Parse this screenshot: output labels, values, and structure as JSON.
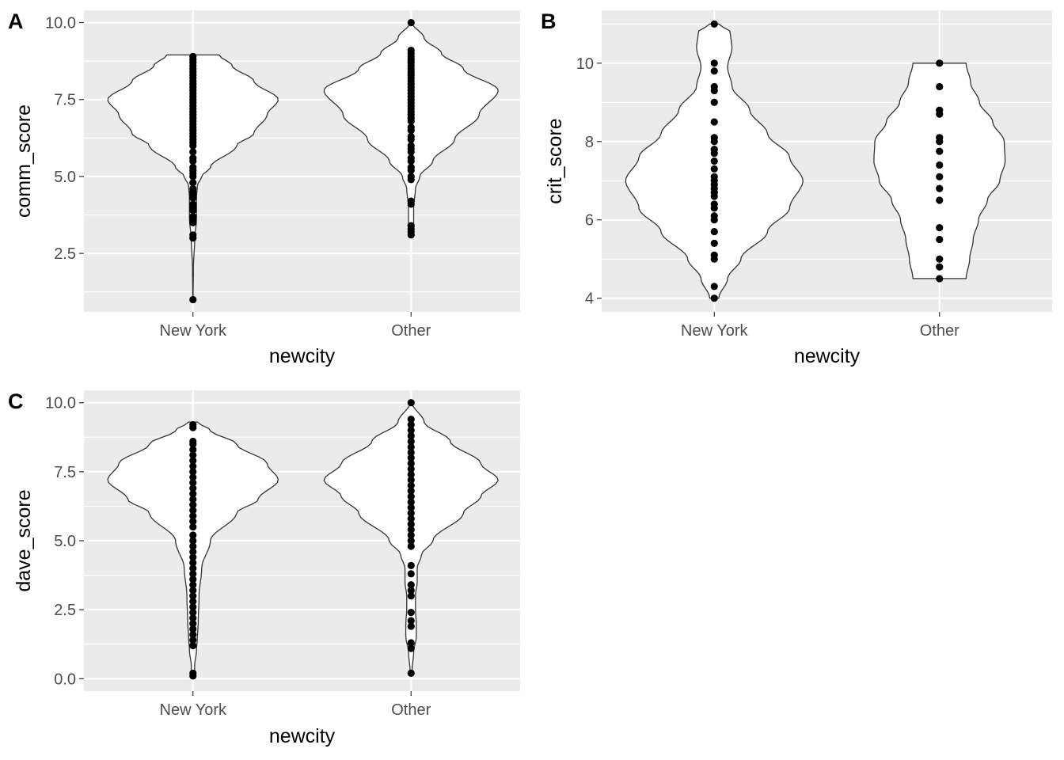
{
  "chart_data": [
    {
      "panel": "A",
      "type": "violin",
      "categories": [
        "New York",
        "Other"
      ],
      "xlabel": "newcity",
      "ylabel": "comm_score",
      "ylim": [
        0.6,
        10.4
      ],
      "yticks": [
        2.5,
        5.0,
        7.5,
        10.0
      ],
      "ytick_labels": [
        "2.5",
        "5.0",
        "7.5",
        "10.0"
      ],
      "grid": true,
      "violins": [
        {
          "category": "New York",
          "range": [
            1.0,
            8.95
          ],
          "density": [
            [
              1.0,
              0.002
            ],
            [
              2.0,
              0.005
            ],
            [
              3.0,
              0.02
            ],
            [
              3.6,
              0.04
            ],
            [
              4.3,
              0.04
            ],
            [
              4.7,
              0.05
            ],
            [
              5.0,
              0.1
            ],
            [
              5.3,
              0.2
            ],
            [
              6.0,
              0.5
            ],
            [
              6.4,
              0.7
            ],
            [
              7.0,
              0.85
            ],
            [
              7.5,
              0.98
            ],
            [
              8.1,
              0.7
            ],
            [
              8.6,
              0.45
            ],
            [
              8.95,
              0.3
            ]
          ],
          "points": [
            1.0,
            3.0,
            3.1,
            3.5,
            3.6,
            3.7,
            3.9,
            4.0,
            4.1,
            4.3,
            4.4,
            4.5,
            4.6,
            4.8,
            5.0,
            5.1,
            5.2,
            5.3,
            5.5,
            5.6,
            5.8,
            6.0,
            6.1,
            6.2,
            6.3,
            6.4,
            6.5,
            6.6,
            6.7,
            6.8,
            6.9,
            7.0,
            7.1,
            7.2,
            7.3,
            7.4,
            7.5,
            7.6,
            7.7,
            7.8,
            7.9,
            8.0,
            8.1,
            8.2,
            8.3,
            8.4,
            8.5,
            8.6,
            8.7,
            8.8,
            8.9
          ]
        },
        {
          "category": "Other",
          "range": [
            3.1,
            10.0
          ],
          "density": [
            [
              3.1,
              0.02
            ],
            [
              3.5,
              0.03
            ],
            [
              4.0,
              0.03
            ],
            [
              4.6,
              0.05
            ],
            [
              5.0,
              0.1
            ],
            [
              5.5,
              0.25
            ],
            [
              6.2,
              0.5
            ],
            [
              7.0,
              0.78
            ],
            [
              7.8,
              1.0
            ],
            [
              8.5,
              0.6
            ],
            [
              9.0,
              0.35
            ],
            [
              9.5,
              0.15
            ],
            [
              10.0,
              0.01
            ]
          ],
          "points": [
            3.1,
            3.2,
            3.3,
            3.4,
            4.1,
            4.2,
            4.9,
            5.0,
            5.2,
            5.3,
            5.5,
            5.6,
            5.8,
            5.9,
            6.0,
            6.2,
            6.3,
            6.5,
            6.6,
            6.8,
            6.9,
            7.0,
            7.1,
            7.2,
            7.3,
            7.4,
            7.5,
            7.6,
            7.7,
            7.8,
            7.9,
            8.0,
            8.1,
            8.2,
            8.3,
            8.4,
            8.5,
            8.6,
            8.7,
            8.8,
            8.9,
            9.0,
            9.1,
            10.0
          ]
        }
      ]
    },
    {
      "panel": "B",
      "type": "violin",
      "categories": [
        "New York",
        "Other"
      ],
      "xlabel": "newcity",
      "ylabel": "crit_score",
      "ylim": [
        3.65,
        11.35
      ],
      "yticks": [
        4,
        6,
        8,
        10
      ],
      "ytick_labels": [
        "4",
        "6",
        "8",
        "10"
      ],
      "grid": true,
      "violins": [
        {
          "category": "New York",
          "range": [
            4.0,
            11.0
          ],
          "density": [
            [
              4.0,
              0.05
            ],
            [
              4.5,
              0.15
            ],
            [
              5.0,
              0.3
            ],
            [
              5.7,
              0.6
            ],
            [
              6.3,
              0.85
            ],
            [
              7.0,
              1.0
            ],
            [
              7.6,
              0.85
            ],
            [
              8.2,
              0.6
            ],
            [
              8.8,
              0.4
            ],
            [
              9.4,
              0.2
            ],
            [
              9.9,
              0.15
            ],
            [
              10.4,
              0.2
            ],
            [
              10.8,
              0.18
            ],
            [
              11.0,
              0.05
            ]
          ],
          "points": [
            4.0,
            4.3,
            5.0,
            5.1,
            5.4,
            5.7,
            6.0,
            6.1,
            6.3,
            6.4,
            6.6,
            6.7,
            6.8,
            6.9,
            7.0,
            7.1,
            7.3,
            7.5,
            7.7,
            7.8,
            8.0,
            8.1,
            8.5,
            9.0,
            9.3,
            9.4,
            9.8,
            10.0,
            11.0
          ]
        },
        {
          "category": "Other",
          "range": [
            4.5,
            10.0
          ],
          "density": [
            [
              4.5,
              0.3
            ],
            [
              5.0,
              0.34
            ],
            [
              5.5,
              0.38
            ],
            [
              6.0,
              0.44
            ],
            [
              6.5,
              0.54
            ],
            [
              7.0,
              0.68
            ],
            [
              7.5,
              0.74
            ],
            [
              8.0,
              0.73
            ],
            [
              8.5,
              0.6
            ],
            [
              9.0,
              0.45
            ],
            [
              9.5,
              0.35
            ],
            [
              10.0,
              0.3
            ]
          ],
          "points": [
            4.5,
            4.8,
            5.0,
            5.5,
            5.8,
            6.5,
            6.8,
            7.1,
            7.4,
            7.75,
            8.0,
            8.1,
            8.7,
            8.8,
            9.4,
            10.0
          ]
        }
      ]
    },
    {
      "panel": "C",
      "type": "violin",
      "categories": [
        "New York",
        "Other"
      ],
      "xlabel": "newcity",
      "ylabel": "dave_score",
      "ylim": [
        -0.45,
        10.45
      ],
      "yticks": [
        0.0,
        2.5,
        5.0,
        7.5,
        10.0
      ],
      "ytick_labels": [
        "0.0",
        "2.5",
        "5.0",
        "7.5",
        "10.0"
      ],
      "grid": true,
      "violins": [
        {
          "category": "New York",
          "range": [
            0.1,
            9.3
          ],
          "density": [
            [
              0.1,
              0.02
            ],
            [
              0.5,
              0.02
            ],
            [
              1.0,
              0.04
            ],
            [
              1.5,
              0.05
            ],
            [
              2.0,
              0.06
            ],
            [
              3.0,
              0.07
            ],
            [
              4.0,
              0.1
            ],
            [
              5.0,
              0.2
            ],
            [
              6.0,
              0.5
            ],
            [
              6.5,
              0.75
            ],
            [
              7.2,
              0.98
            ],
            [
              7.8,
              0.85
            ],
            [
              8.5,
              0.5
            ],
            [
              9.0,
              0.2
            ],
            [
              9.3,
              0.05
            ]
          ],
          "points": [
            0.1,
            0.2,
            1.2,
            1.4,
            1.6,
            1.8,
            2.0,
            2.2,
            2.4,
            2.6,
            2.8,
            3.0,
            3.2,
            3.4,
            3.6,
            3.8,
            4.0,
            4.2,
            4.4,
            4.6,
            4.8,
            5.0,
            5.2,
            5.5,
            5.7,
            5.9,
            6.1,
            6.3,
            6.5,
            6.7,
            6.9,
            7.1,
            7.3,
            7.5,
            7.7,
            7.9,
            8.1,
            8.3,
            8.5,
            8.6,
            9.1,
            9.2
          ]
        },
        {
          "category": "Other",
          "range": [
            0.2,
            10.0
          ],
          "density": [
            [
              0.2,
              0.01
            ],
            [
              1.0,
              0.03
            ],
            [
              1.5,
              0.06
            ],
            [
              2.0,
              0.06
            ],
            [
              2.5,
              0.05
            ],
            [
              3.0,
              0.05
            ],
            [
              3.5,
              0.07
            ],
            [
              4.0,
              0.07
            ],
            [
              4.5,
              0.12
            ],
            [
              5.0,
              0.25
            ],
            [
              6.0,
              0.6
            ],
            [
              6.6,
              0.8
            ],
            [
              7.2,
              1.0
            ],
            [
              7.8,
              0.8
            ],
            [
              8.6,
              0.45
            ],
            [
              9.3,
              0.15
            ],
            [
              10.0,
              0.01
            ]
          ],
          "points": [
            0.2,
            1.1,
            1.3,
            1.9,
            2.1,
            2.4,
            3.0,
            3.2,
            3.4,
            3.8,
            4.1,
            4.8,
            5.0,
            5.2,
            5.4,
            5.6,
            5.8,
            6.0,
            6.2,
            6.4,
            6.6,
            6.8,
            7.0,
            7.2,
            7.4,
            7.6,
            7.8,
            8.0,
            8.2,
            8.4,
            8.6,
            8.8,
            9.0,
            9.2,
            9.4,
            10.0
          ]
        }
      ]
    }
  ]
}
